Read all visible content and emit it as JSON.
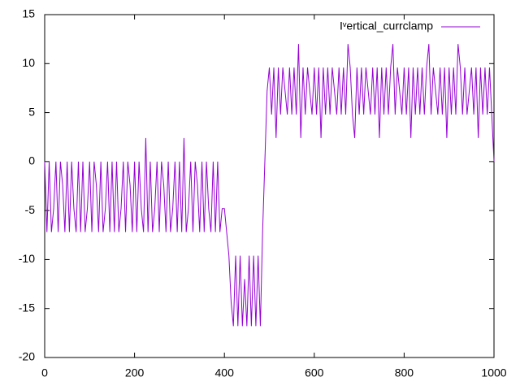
{
  "chart_data": {
    "type": "line",
    "x": [
      0,
      5,
      10,
      15,
      20,
      25,
      30,
      35,
      40,
      45,
      50,
      55,
      60,
      65,
      70,
      75,
      80,
      85,
      90,
      95,
      100,
      105,
      110,
      115,
      120,
      125,
      130,
      135,
      140,
      145,
      150,
      155,
      160,
      165,
      170,
      175,
      180,
      185,
      190,
      195,
      200,
      205,
      210,
      215,
      220,
      225,
      230,
      235,
      240,
      245,
      250,
      255,
      260,
      265,
      270,
      275,
      280,
      285,
      290,
      295,
      300,
      305,
      310,
      315,
      320,
      325,
      330,
      335,
      340,
      345,
      350,
      355,
      360,
      365,
      370,
      375,
      380,
      385,
      390,
      395,
      400,
      405,
      410,
      415,
      420,
      425,
      430,
      435,
      440,
      445,
      450,
      455,
      460,
      465,
      470,
      475,
      480,
      485,
      490,
      495,
      500,
      505,
      510,
      515,
      520,
      525,
      530,
      535,
      540,
      545,
      550,
      555,
      560,
      565,
      570,
      575,
      580,
      585,
      590,
      595,
      600,
      605,
      610,
      615,
      620,
      625,
      630,
      635,
      640,
      645,
      650,
      655,
      660,
      665,
      670,
      675,
      680,
      685,
      690,
      695,
      700,
      705,
      710,
      715,
      720,
      725,
      730,
      735,
      740,
      745,
      750,
      755,
      760,
      765,
      770,
      775,
      780,
      785,
      790,
      795,
      800,
      805,
      810,
      815,
      820,
      825,
      830,
      835,
      840,
      845,
      850,
      855,
      860,
      865,
      870,
      875,
      880,
      885,
      890,
      895,
      900,
      905,
      910,
      915,
      920,
      925,
      930,
      935,
      940,
      945,
      950,
      955,
      960,
      965,
      970,
      975,
      980,
      985,
      990,
      995,
      1000
    ],
    "series": [
      {
        "name": "Iᵛertical_currclamp",
        "color": "#9400d3",
        "values": [
          0,
          -7.2,
          0,
          -7.2,
          -4.8,
          0,
          -7.2,
          0,
          -2.4,
          -7.2,
          0,
          -7.2,
          0,
          -4.8,
          -7.2,
          0,
          -7.2,
          0,
          -7.2,
          -4.8,
          0,
          -7.2,
          0,
          -2.4,
          -7.2,
          0,
          -7.2,
          -4.8,
          0,
          -7.2,
          0,
          -7.2,
          0,
          -7.2,
          -4.8,
          0,
          -7.2,
          0,
          -2.4,
          -7.2,
          0,
          -7.2,
          0,
          -4.8,
          -7.2,
          2.4,
          -7.2,
          0,
          -7.2,
          -4.8,
          0,
          -7.2,
          0,
          -2.4,
          -7.2,
          0,
          -7.2,
          -4.8,
          0,
          -7.2,
          0,
          -7.2,
          2.4,
          -7.2,
          -4.8,
          0,
          -7.2,
          0,
          -2.4,
          -7.2,
          0,
          -7.2,
          0,
          -4.8,
          -7.2,
          0,
          -7.2,
          0,
          -7.2,
          -4.8,
          -4.8,
          -7.2,
          -9.6,
          -14.4,
          -16.8,
          -9.6,
          -16.8,
          -9.6,
          -16.8,
          -12,
          -16.8,
          -9.6,
          -16.8,
          -9.6,
          -16.8,
          -9.6,
          -16.8,
          -7.2,
          0,
          7.2,
          9.6,
          4.8,
          9.6,
          2.4,
          9.6,
          4.8,
          9.6,
          7.2,
          4.8,
          9.6,
          4.8,
          9.6,
          4.8,
          12,
          2.4,
          9.6,
          4.8,
          9.6,
          7.2,
          4.8,
          9.6,
          4.8,
          9.6,
          2.4,
          9.6,
          4.8,
          9.6,
          4.8,
          9.6,
          7.2,
          4.8,
          9.6,
          4.8,
          9.6,
          4.8,
          12,
          9.6,
          4.8,
          2.4,
          9.6,
          4.8,
          9.6,
          4.8,
          9.6,
          7.2,
          4.8,
          9.6,
          4.8,
          9.6,
          2.4,
          9.6,
          4.8,
          9.6,
          4.8,
          9.6,
          12,
          4.8,
          9.6,
          7.2,
          4.8,
          9.6,
          4.8,
          9.6,
          2.4,
          9.6,
          4.8,
          9.6,
          4.8,
          9.6,
          4.8,
          9.6,
          12,
          4.8,
          9.6,
          7.2,
          4.8,
          9.6,
          4.8,
          9.6,
          2.4,
          9.6,
          4.8,
          9.6,
          4.8,
          12,
          9.6,
          4.8,
          9.6,
          4.8,
          7.2,
          9.6,
          4.8,
          9.6,
          2.4,
          9.6,
          4.8,
          9.6,
          4.8,
          9.6,
          4.8,
          0
        ]
      }
    ],
    "xlim": [
      0,
      1000
    ],
    "xticks": [
      0,
      200,
      400,
      600,
      800,
      1000
    ],
    "ylim": [
      -20,
      15
    ],
    "yticks": [
      -20,
      -15,
      -10,
      -5,
      0,
      5,
      10,
      15
    ],
    "legend": "top-right"
  }
}
